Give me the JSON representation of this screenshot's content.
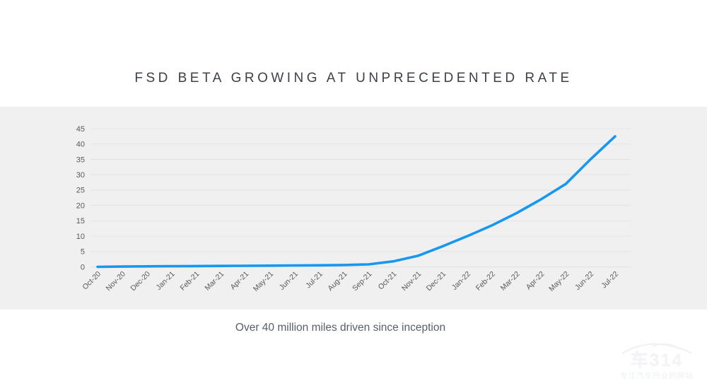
{
  "page": {
    "title": "FSD BETA GROWING AT UNPRECEDENTED RATE",
    "subtitle": "Over 40 million miles driven since inception"
  },
  "colors": {
    "line": "#1798f0",
    "band_background": "#f0f0f0",
    "gridline": "#e3e3e3",
    "axis_text": "#595959",
    "title_text": "#3c4049",
    "subtitle_text": "#595f66"
  },
  "watermark": {
    "logo": "车314",
    "tagline": "专注汽车行业的网站"
  },
  "chart_data": {
    "type": "line",
    "title": "FSD BETA GROWING AT UNPRECEDENTED RATE",
    "annotation": "Over 40 million miles driven since inception",
    "categories": [
      "Oct-20",
      "Nov-20",
      "Dec-20",
      "Jan-21",
      "Feb-21",
      "Mar-21",
      "Apr-21",
      "May-21",
      "Jun-21",
      "Jul-21",
      "Aug-21",
      "Sep-21",
      "Oct-21",
      "Nov-21",
      "Dec-21",
      "Jan-22",
      "Feb-22",
      "Mar-22",
      "Apr-22",
      "May-22",
      "Jun-22",
      "Jul-22"
    ],
    "values": [
      0,
      0.1,
      0.15,
      0.2,
      0.25,
      0.3,
      0.35,
      0.4,
      0.45,
      0.5,
      0.6,
      0.8,
      1.8,
      3.6,
      6.7,
      10,
      13.5,
      17.5,
      22,
      27,
      35,
      42.5
    ],
    "xlabel": "",
    "ylabel": "",
    "ylim": [
      0,
      45
    ],
    "yticks": [
      0,
      5,
      10,
      15,
      20,
      25,
      30,
      35,
      40,
      45
    ],
    "grid": true,
    "legend_position": "none"
  }
}
